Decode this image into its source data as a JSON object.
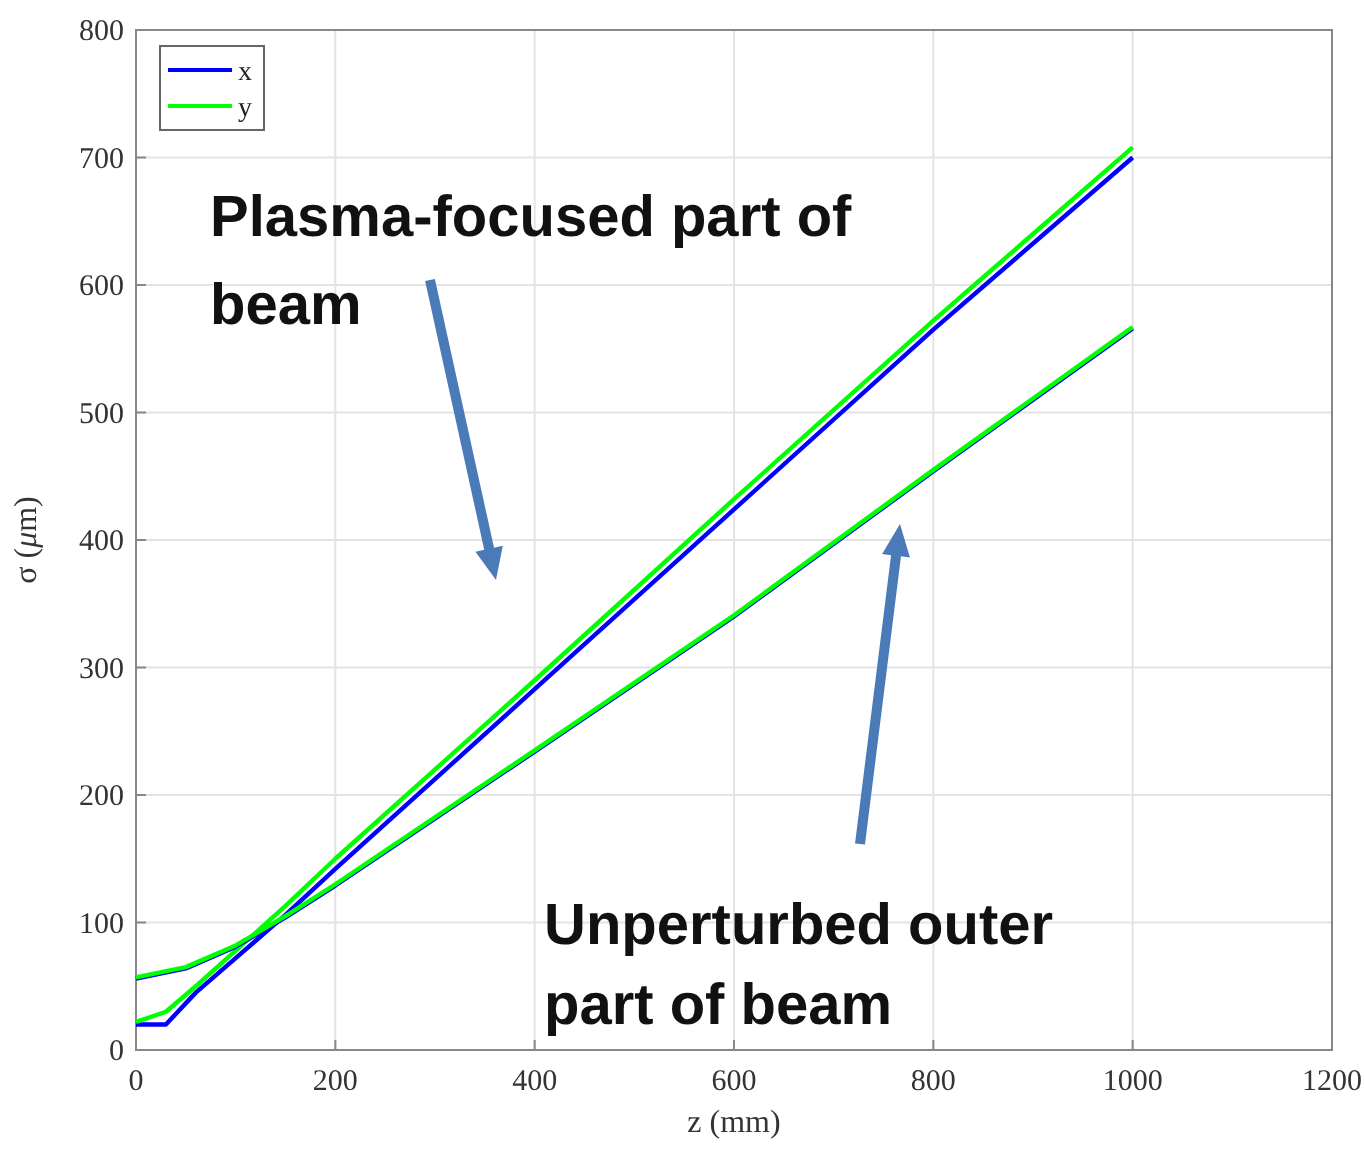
{
  "chart_data": {
    "type": "line",
    "xlabel": "z (mm)",
    "ylabel": "σ (μm)",
    "xlim": [
      0,
      1200
    ],
    "ylim": [
      0,
      800
    ],
    "xticks": [
      0,
      200,
      400,
      600,
      800,
      1000,
      1200
    ],
    "yticks": [
      0,
      100,
      200,
      300,
      400,
      500,
      600,
      700,
      800
    ],
    "grid": true,
    "legend": "top left",
    "line_style": "solid",
    "marker": "none",
    "series": [
      {
        "name": "x",
        "color": "#0000ff",
        "x": [
          0,
          30,
          60,
          100,
          150,
          200,
          400,
          600,
          800,
          1000
        ],
        "values": [
          20,
          20,
          45,
          72,
          106,
          142,
          283,
          424,
          565,
          700
        ]
      },
      {
        "name": "y",
        "color": "#00ff00",
        "x": [
          0,
          30,
          60,
          100,
          150,
          200,
          400,
          600,
          800,
          1000
        ],
        "values": [
          22,
          30,
          50,
          78,
          113,
          150,
          290,
          432,
          572,
          708
        ]
      },
      {
        "color": "#0000ff",
        "x": [
          0,
          50,
          100,
          150,
          200,
          400,
          600,
          800,
          1000
        ],
        "values": [
          56,
          64,
          81,
          104,
          129,
          234,
          340,
          454,
          566
        ]
      },
      {
        "color": "#00ff00",
        "x": [
          0,
          50,
          100,
          150,
          200,
          400,
          600,
          800,
          1000
        ],
        "values": [
          57,
          65,
          82,
          105,
          130,
          235,
          341,
          455,
          567
        ]
      }
    ],
    "annotations": [
      "Plasma-focused part of beam",
      "Unperturbed outer part of beam"
    ]
  }
}
